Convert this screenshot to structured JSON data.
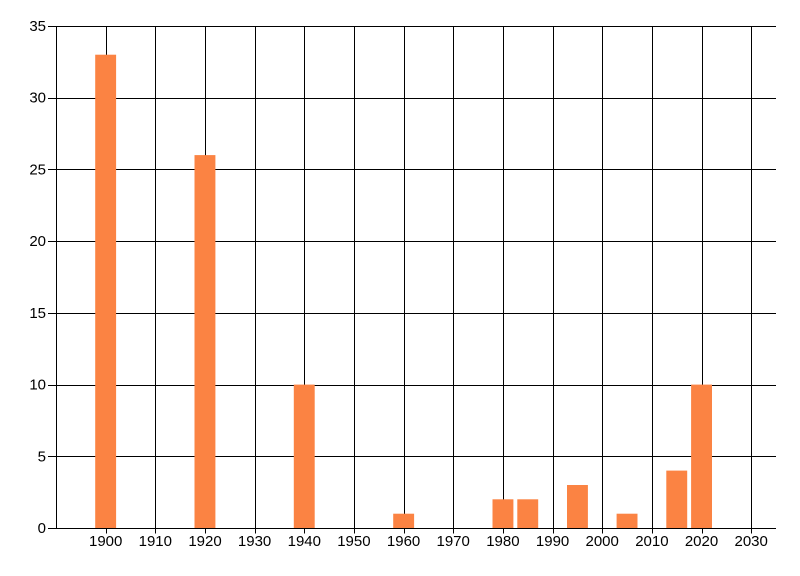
{
  "chart_data": {
    "type": "bar",
    "title": "",
    "xlabel": "",
    "ylabel": "",
    "x": [
      1900,
      1920,
      1940,
      1960,
      1980,
      1985,
      1995,
      2005,
      2015,
      2020
    ],
    "values": [
      33,
      26,
      10,
      1,
      2,
      2,
      3,
      1,
      4,
      10
    ],
    "xlim": [
      1890,
      2035
    ],
    "ylim": [
      0,
      35
    ],
    "x_ticks": [
      1900,
      1910,
      1920,
      1930,
      1940,
      1950,
      1960,
      1970,
      1980,
      1990,
      2000,
      2010,
      2020,
      2030
    ],
    "y_ticks": [
      0,
      5,
      10,
      15,
      20,
      25,
      30,
      35
    ],
    "bar_width_years": 4.2,
    "grid": true,
    "legend": "none",
    "colors": {
      "bar": "#FB8343",
      "grid": "#000000",
      "axis": "#000000",
      "tick_label": "#000000",
      "background": "#FFFFFF"
    }
  }
}
